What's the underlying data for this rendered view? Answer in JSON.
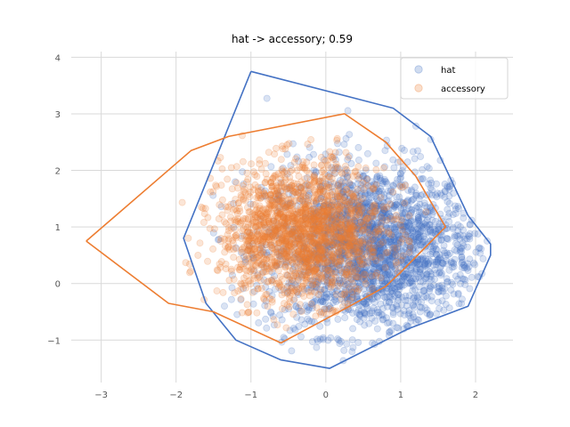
{
  "chart_data": {
    "type": "scatter",
    "title": "hat -> accessory; 0.59",
    "xlabel": "",
    "ylabel": "",
    "xlim": [
      -3.4,
      2.5
    ],
    "ylim": [
      -1.75,
      4.1
    ],
    "xticks": [
      -3,
      -2,
      -1,
      0,
      1,
      2
    ],
    "yticks": [
      -1,
      0,
      1,
      2,
      3,
      4
    ],
    "xtick_labels": [
      "−3",
      "−2",
      "−1",
      "0",
      "1",
      "2"
    ],
    "ytick_labels": [
      "−1",
      "0",
      "1",
      "2",
      "3",
      "4"
    ],
    "grid": true,
    "legend_position": "top-right",
    "series": [
      {
        "name": "hat",
        "color": "#4472C4",
        "point_alpha": 0.2,
        "approx_count": 2200,
        "center": [
          0.6,
          0.6
        ],
        "spread": [
          0.7,
          0.75
        ],
        "hull": [
          [
            -1.0,
            3.75
          ],
          [
            0.9,
            3.1
          ],
          [
            1.4,
            2.6
          ],
          [
            1.9,
            1.2
          ],
          [
            2.2,
            0.7
          ],
          [
            2.2,
            0.5
          ],
          [
            1.9,
            -0.4
          ],
          [
            1.1,
            -0.8
          ],
          [
            0.05,
            -1.5
          ],
          [
            -0.6,
            -1.35
          ],
          [
            -1.2,
            -1.0
          ],
          [
            -1.6,
            -0.35
          ],
          [
            -1.9,
            0.8
          ],
          [
            -1.0,
            3.75
          ]
        ]
      },
      {
        "name": "accessory",
        "color": "#ED7D31",
        "point_alpha": 0.2,
        "approx_count": 1800,
        "center": [
          -0.3,
          0.9
        ],
        "spread": [
          0.55,
          0.6
        ],
        "hull": [
          [
            -3.2,
            0.75
          ],
          [
            -1.8,
            2.35
          ],
          [
            -1.3,
            2.6
          ],
          [
            0.25,
            3.0
          ],
          [
            0.8,
            2.5
          ],
          [
            1.2,
            1.9
          ],
          [
            1.6,
            1.0
          ],
          [
            1.0,
            0.2
          ],
          [
            0.8,
            -0.05
          ],
          [
            0.25,
            -0.45
          ],
          [
            -0.6,
            -1.05
          ],
          [
            -1.5,
            -0.5
          ],
          [
            -2.1,
            -0.35
          ],
          [
            -3.2,
            0.75
          ]
        ]
      }
    ]
  }
}
